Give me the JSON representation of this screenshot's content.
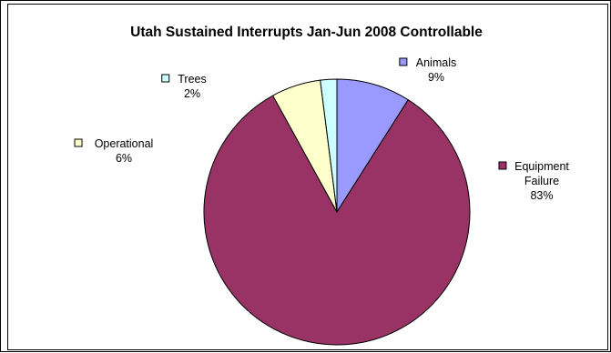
{
  "chart_data": {
    "type": "pie",
    "title": "Utah Sustained Interrupts Jan-Jun 2008 Controllable",
    "slices": [
      {
        "label": "Animals",
        "value": 9,
        "value_label": "9%",
        "color": "#9999ff"
      },
      {
        "label": "Equipment Failure",
        "value": 83,
        "value_label": "83%",
        "color": "#993366"
      },
      {
        "label": "Operational",
        "value": 6,
        "value_label": "6%",
        "color": "#ffffcc"
      },
      {
        "label": "Trees",
        "value": 2,
        "value_label": "2%",
        "color": "#ccffff"
      }
    ]
  }
}
